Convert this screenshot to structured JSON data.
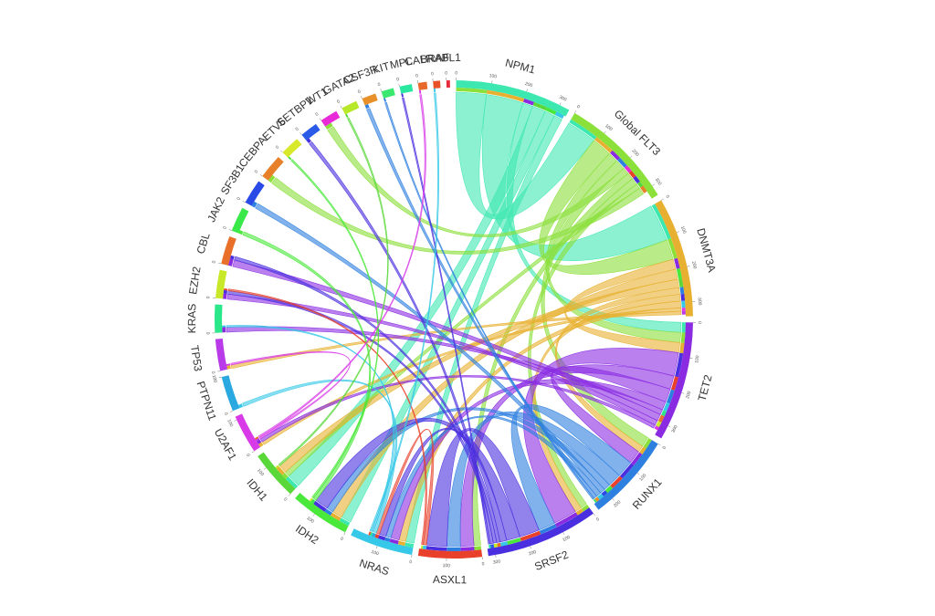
{
  "chart_data": {
    "type": "chord",
    "ticks": [
      0,
      100,
      200,
      300
    ],
    "nodes": [
      {
        "name": "NPM1",
        "size": 330,
        "color": "#3de8b0"
      },
      {
        "name": "Global FLT3",
        "size": 330,
        "color": "#8be03a"
      },
      {
        "name": "DNMT3A",
        "size": 340,
        "color": "#e8b030"
      },
      {
        "name": "TET2",
        "size": 340,
        "color": "#8a2be2"
      },
      {
        "name": "RUNX1",
        "size": 250,
        "color": "#2d7fe0"
      },
      {
        "name": "SRSF2",
        "size": 320,
        "color": "#4a2fe0"
      },
      {
        "name": "ASXL1",
        "size": 180,
        "color": "#e8402a"
      },
      {
        "name": "NRAS",
        "size": 180,
        "color": "#35c8e8"
      },
      {
        "name": "IDH2",
        "size": 170,
        "color": "#4ae83a"
      },
      {
        "name": "IDH1",
        "size": 140,
        "color": "#5ad83a"
      },
      {
        "name": "U2AF1",
        "size": 110,
        "color": "#d83ae8"
      },
      {
        "name": "PTPN11",
        "size": 100,
        "color": "#2aa8e0"
      },
      {
        "name": "TP53",
        "size": 90,
        "color": "#b83ae8"
      },
      {
        "name": "KRAS",
        "size": 80,
        "color": "#2ae88a"
      },
      {
        "name": "EZH2",
        "size": 80,
        "color": "#c8e82a"
      },
      {
        "name": "CBL",
        "size": 80,
        "color": "#e8702a"
      },
      {
        "name": "JAK2",
        "size": 70,
        "color": "#3ae84a"
      },
      {
        "name": "SF3B1",
        "size": 70,
        "color": "#2a4ae8"
      },
      {
        "name": "CEBPA",
        "size": 70,
        "color": "#e8802a"
      },
      {
        "name": "ETV6",
        "size": 55,
        "color": "#d8e82a"
      },
      {
        "name": "SETBP1",
        "size": 50,
        "color": "#2a5ae8"
      },
      {
        "name": "WT1",
        "size": 50,
        "color": "#e82ad8"
      },
      {
        "name": "GATA2",
        "size": 45,
        "color": "#b8e82a"
      },
      {
        "name": "CSF3R",
        "size": 40,
        "color": "#e8902a"
      },
      {
        "name": "KIT",
        "size": 35,
        "color": "#3ae870"
      },
      {
        "name": "MPL",
        "size": 35,
        "color": "#2ae8a0"
      },
      {
        "name": "CALR",
        "size": 25,
        "color": "#e86a2a"
      },
      {
        "name": "BRAF",
        "size": 20,
        "color": "#e8502a"
      },
      {
        "name": "ABL1",
        "size": 10,
        "color": "#e82a3a"
      }
    ],
    "links": [
      {
        "source": "NPM1",
        "target": "Global FLT3",
        "value": 90
      },
      {
        "source": "NPM1",
        "target": "DNMT3A",
        "value": 110
      },
      {
        "source": "NPM1",
        "target": "TET2",
        "value": 30
      },
      {
        "source": "NPM1",
        "target": "IDH1",
        "value": 40
      },
      {
        "source": "NPM1",
        "target": "IDH2",
        "value": 30
      },
      {
        "source": "NPM1",
        "target": "NRAS",
        "value": 25
      },
      {
        "source": "Global FLT3",
        "target": "DNMT3A",
        "value": 60
      },
      {
        "source": "Global FLT3",
        "target": "TET2",
        "value": 30
      },
      {
        "source": "Global FLT3",
        "target": "RUNX1",
        "value": 30
      },
      {
        "source": "Global FLT3",
        "target": "WT1",
        "value": 20
      },
      {
        "source": "Global FLT3",
        "target": "ASXL1",
        "value": 20
      },
      {
        "source": "Global FLT3",
        "target": "SRSF2",
        "value": 20
      },
      {
        "source": "Global FLT3",
        "target": "IDH1",
        "value": 15
      },
      {
        "source": "Global FLT3",
        "target": "CEBPA",
        "value": 20
      },
      {
        "source": "DNMT3A",
        "target": "TET2",
        "value": 30
      },
      {
        "source": "DNMT3A",
        "target": "IDH2",
        "value": 30
      },
      {
        "source": "DNMT3A",
        "target": "IDH1",
        "value": 25
      },
      {
        "source": "DNMT3A",
        "target": "RUNX1",
        "value": 20
      },
      {
        "source": "DNMT3A",
        "target": "SRSF2",
        "value": 20
      },
      {
        "source": "DNMT3A",
        "target": "NRAS",
        "value": 20
      },
      {
        "source": "DNMT3A",
        "target": "U2AF1",
        "value": 10
      },
      {
        "source": "DNMT3A",
        "target": "TP53",
        "value": 10
      },
      {
        "source": "TET2",
        "target": "SRSF2",
        "value": 70
      },
      {
        "source": "TET2",
        "target": "ASXL1",
        "value": 40
      },
      {
        "source": "TET2",
        "target": "RUNX1",
        "value": 40
      },
      {
        "source": "TET2",
        "target": "NRAS",
        "value": 25
      },
      {
        "source": "TET2",
        "target": "KRAS",
        "value": 15
      },
      {
        "source": "TET2",
        "target": "CBL",
        "value": 20
      },
      {
        "source": "TET2",
        "target": "EZH2",
        "value": 15
      },
      {
        "source": "TET2",
        "target": "U2AF1",
        "value": 10
      },
      {
        "source": "RUNX1",
        "target": "SRSF2",
        "value": 50
      },
      {
        "source": "RUNX1",
        "target": "ASXL1",
        "value": 40
      },
      {
        "source": "RUNX1",
        "target": "IDH2",
        "value": 20
      },
      {
        "source": "RUNX1",
        "target": "SF3B1",
        "value": 15
      },
      {
        "source": "RUNX1",
        "target": "NRAS",
        "value": 15
      },
      {
        "source": "RUNX1",
        "target": "CSF3R",
        "value": 10
      },
      {
        "source": "RUNX1",
        "target": "KIT",
        "value": 5
      },
      {
        "source": "SRSF2",
        "target": "ASXL1",
        "value": 60
      },
      {
        "source": "SRSF2",
        "target": "IDH2",
        "value": 40
      },
      {
        "source": "SRSF2",
        "target": "NRAS",
        "value": 20
      },
      {
        "source": "SRSF2",
        "target": "CBL",
        "value": 10
      },
      {
        "source": "SRSF2",
        "target": "EZH2",
        "value": 10
      },
      {
        "source": "SRSF2",
        "target": "SETBP1",
        "value": 10
      },
      {
        "source": "SRSF2",
        "target": "MPL",
        "value": 5
      },
      {
        "source": "ASXL1",
        "target": "NRAS",
        "value": 10
      },
      {
        "source": "ASXL1",
        "target": "EZH2",
        "value": 5
      },
      {
        "source": "NRAS",
        "target": "PTPN11",
        "value": 10
      },
      {
        "source": "NRAS",
        "target": "KRAS",
        "value": 5
      },
      {
        "source": "NRAS",
        "target": "BRAF",
        "value": 5
      },
      {
        "source": "IDH2",
        "target": "JAK2",
        "value": 10
      },
      {
        "source": "IDH2",
        "target": "ETV6",
        "value": 5
      },
      {
        "source": "IDH1",
        "target": "GATA2",
        "value": 5
      },
      {
        "source": "U2AF1",
        "target": "TP53",
        "value": 5
      },
      {
        "source": "U2AF1",
        "target": "CALR",
        "value": 5
      }
    ]
  }
}
